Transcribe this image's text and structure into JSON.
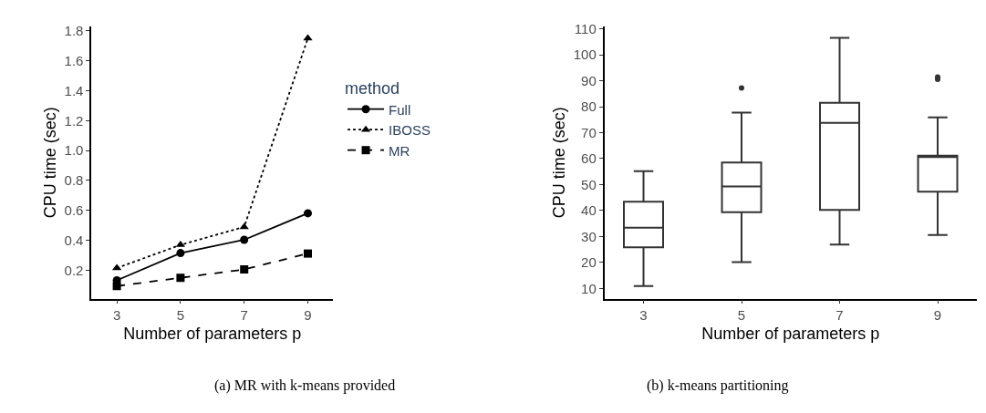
{
  "chart_data": [
    {
      "type": "line",
      "categories": [
        "3",
        "5",
        "7",
        "9"
      ],
      "xlabel": "Number of parameters p",
      "ylabel": "CPU time (sec)",
      "legend_title": "method",
      "legend": "right",
      "ylim": [
        0.01,
        1.83
      ],
      "yticks": [
        {
          "value": 0.2,
          "label": "0.2"
        },
        {
          "value": 0.4,
          "label": "0.4"
        },
        {
          "value": 0.6,
          "label": "0.6"
        },
        {
          "value": 0.8,
          "label": "0.8"
        },
        {
          "value": 1.0,
          "label": "1.0"
        },
        {
          "value": 1.2,
          "label": "1.2"
        },
        {
          "value": 1.4,
          "label": "1.4"
        },
        {
          "value": 1.6,
          "label": "1.6"
        },
        {
          "value": 1.8,
          "label": "1.8"
        }
      ],
      "series": [
        {
          "name": "Full",
          "color": "#000000",
          "marker": "circle",
          "line_style": "solid",
          "values": [
            0.133,
            0.315,
            0.404,
            0.581
          ]
        },
        {
          "name": "IBOSS",
          "color": "#000000",
          "marker": "triangle",
          "line_style": "dotted",
          "values": [
            0.215,
            0.37,
            0.49,
            1.75
          ]
        },
        {
          "name": "MR",
          "color": "#000000",
          "marker": "square",
          "line_style": "dashed",
          "values": [
            0.095,
            0.15,
            0.206,
            0.312
          ]
        }
      ],
      "annotations": [
        "(a) MR with k-means provided"
      ]
    },
    {
      "type": "box",
      "categories": [
        "3",
        "5",
        "7",
        "9"
      ],
      "xlabel": "Number of parameters p",
      "ylabel": "CPU time (sec)",
      "ylim": [
        6,
        111
      ],
      "yticks": [
        10,
        20,
        30,
        40,
        50,
        60,
        70,
        80,
        90,
        100,
        110
      ],
      "color": "#333333",
      "boxes": [
        {
          "low": 10.9,
          "q1": 25.8,
          "median": 33.4,
          "q3": 43.4,
          "high": 55.2
        },
        {
          "low": 20.1,
          "q1": 39.4,
          "median": 49.3,
          "q3": 58.5,
          "high": 77.7,
          "outliers": [
            87.2
          ]
        },
        {
          "low": 26.9,
          "q1": 40.2,
          "median": 73.8,
          "q3": 81.5,
          "high": 106.5
        },
        {
          "low": 30.6,
          "q1": 47.3,
          "median": 60.6,
          "q3": 61.1,
          "high": 75.9,
          "outliers": [
            91.4,
            90.6
          ]
        }
      ],
      "annotations": [
        "(b) k-means partitioning"
      ]
    }
  ]
}
